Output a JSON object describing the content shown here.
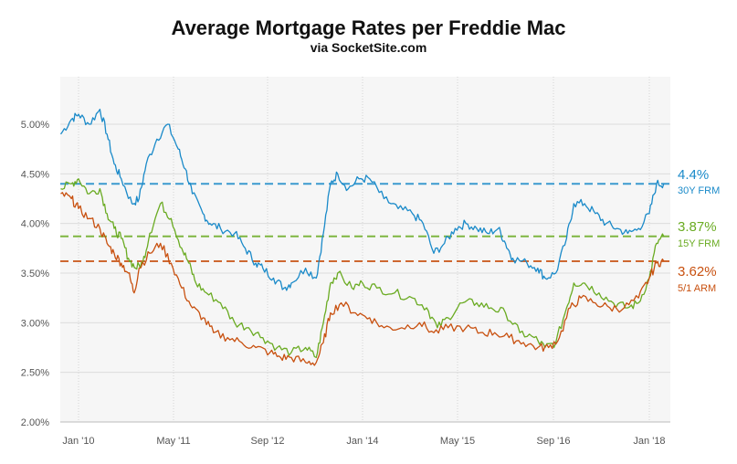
{
  "chart_data": {
    "type": "line",
    "title": "Average Mortgage Rates per Freddie Mac",
    "subtitle": "via SocketSite.com",
    "xlabel": "",
    "ylabel": "",
    "x_ticks": [
      "Jan '10",
      "May '11",
      "Sep '12",
      "Jan '14",
      "May '15",
      "Sep '16",
      "Jan '18"
    ],
    "y_ticks": [
      "2.00%",
      "2.50%",
      "3.00%",
      "3.50%",
      "4.00%",
      "4.50%",
      "5.00%"
    ],
    "ylim": [
      2.0,
      5.5
    ],
    "xlim": [
      2009.75,
      2018.2
    ],
    "grid": true,
    "colors": {
      "30Y FRM": "#1a8ac9",
      "15Y FRM": "#6aab22",
      "5/1 ARM": "#c8500f",
      "shade": "#f6f6f6"
    },
    "series": [
      {
        "name": "30Y FRM",
        "current_label": "4.4%",
        "current": 4.4,
        "points": [
          [
            2009.75,
            4.9
          ],
          [
            2009.9,
            5.05
          ],
          [
            2010.0,
            5.1
          ],
          [
            2010.15,
            5.0
          ],
          [
            2010.3,
            5.15
          ],
          [
            2010.4,
            4.9
          ],
          [
            2010.5,
            4.6
          ],
          [
            2010.6,
            4.45
          ],
          [
            2010.75,
            4.2
          ],
          [
            2010.85,
            4.25
          ],
          [
            2010.95,
            4.6
          ],
          [
            2011.1,
            4.85
          ],
          [
            2011.25,
            5.0
          ],
          [
            2011.4,
            4.75
          ],
          [
            2011.5,
            4.55
          ],
          [
            2011.6,
            4.3
          ],
          [
            2011.75,
            4.1
          ],
          [
            2011.85,
            4.0
          ],
          [
            2012.0,
            3.95
          ],
          [
            2012.2,
            3.9
          ],
          [
            2012.35,
            3.75
          ],
          [
            2012.5,
            3.6
          ],
          [
            2012.6,
            3.55
          ],
          [
            2012.75,
            3.45
          ],
          [
            2012.9,
            3.35
          ],
          [
            2013.0,
            3.4
          ],
          [
            2013.2,
            3.55
          ],
          [
            2013.35,
            3.45
          ],
          [
            2013.45,
            3.9
          ],
          [
            2013.55,
            4.4
          ],
          [
            2013.65,
            4.5
          ],
          [
            2013.8,
            4.35
          ],
          [
            2013.95,
            4.45
          ],
          [
            2014.1,
            4.45
          ],
          [
            2014.3,
            4.25
          ],
          [
            2014.5,
            4.15
          ],
          [
            2014.7,
            4.1
          ],
          [
            2014.85,
            4.0
          ],
          [
            2015.0,
            3.7
          ],
          [
            2015.15,
            3.8
          ],
          [
            2015.3,
            3.95
          ],
          [
            2015.45,
            4.0
          ],
          [
            2015.6,
            3.95
          ],
          [
            2015.75,
            3.9
          ],
          [
            2015.9,
            3.95
          ],
          [
            2016.0,
            3.8
          ],
          [
            2016.1,
            3.65
          ],
          [
            2016.3,
            3.6
          ],
          [
            2016.45,
            3.55
          ],
          [
            2016.55,
            3.45
          ],
          [
            2016.7,
            3.5
          ],
          [
            2016.85,
            3.85
          ],
          [
            2016.95,
            4.2
          ],
          [
            2017.1,
            4.2
          ],
          [
            2017.25,
            4.1
          ],
          [
            2017.4,
            4.0
          ],
          [
            2017.55,
            3.95
          ],
          [
            2017.7,
            3.9
          ],
          [
            2017.85,
            3.95
          ],
          [
            2018.0,
            4.1
          ],
          [
            2018.1,
            4.4
          ],
          [
            2018.2,
            4.4
          ]
        ]
      },
      {
        "name": "15Y FRM",
        "current_label": "3.87%",
        "current": 3.87,
        "points": [
          [
            2009.75,
            4.35
          ],
          [
            2009.9,
            4.4
          ],
          [
            2010.0,
            4.45
          ],
          [
            2010.15,
            4.3
          ],
          [
            2010.3,
            4.35
          ],
          [
            2010.4,
            4.1
          ],
          [
            2010.5,
            3.95
          ],
          [
            2010.6,
            3.85
          ],
          [
            2010.7,
            3.65
          ],
          [
            2010.8,
            3.55
          ],
          [
            2010.9,
            3.6
          ],
          [
            2011.0,
            3.9
          ],
          [
            2011.15,
            4.2
          ],
          [
            2011.3,
            4.05
          ],
          [
            2011.45,
            3.75
          ],
          [
            2011.55,
            3.6
          ],
          [
            2011.65,
            3.4
          ],
          [
            2011.8,
            3.3
          ],
          [
            2012.0,
            3.2
          ],
          [
            2012.2,
            3.0
          ],
          [
            2012.4,
            2.95
          ],
          [
            2012.6,
            2.85
          ],
          [
            2012.8,
            2.75
          ],
          [
            2013.0,
            2.7
          ],
          [
            2013.2,
            2.75
          ],
          [
            2013.35,
            2.65
          ],
          [
            2013.45,
            3.0
          ],
          [
            2013.55,
            3.4
          ],
          [
            2013.65,
            3.5
          ],
          [
            2013.85,
            3.35
          ],
          [
            2014.0,
            3.4
          ],
          [
            2014.2,
            3.35
          ],
          [
            2014.45,
            3.3
          ],
          [
            2014.7,
            3.25
          ],
          [
            2014.9,
            3.15
          ],
          [
            2015.05,
            2.95
          ],
          [
            2015.2,
            3.05
          ],
          [
            2015.4,
            3.2
          ],
          [
            2015.6,
            3.2
          ],
          [
            2015.8,
            3.15
          ],
          [
            2016.0,
            3.1
          ],
          [
            2016.2,
            2.9
          ],
          [
            2016.4,
            2.85
          ],
          [
            2016.55,
            2.75
          ],
          [
            2016.7,
            2.8
          ],
          [
            2016.85,
            3.15
          ],
          [
            2016.95,
            3.4
          ],
          [
            2017.1,
            3.4
          ],
          [
            2017.3,
            3.3
          ],
          [
            2017.5,
            3.2
          ],
          [
            2017.7,
            3.15
          ],
          [
            2017.85,
            3.2
          ],
          [
            2018.0,
            3.45
          ],
          [
            2018.1,
            3.8
          ],
          [
            2018.2,
            3.87
          ]
        ]
      },
      {
        "name": "5/1 ARM",
        "current_label": "3.62%",
        "current": 3.62,
        "points": [
          [
            2009.75,
            4.3
          ],
          [
            2009.9,
            4.25
          ],
          [
            2010.0,
            4.15
          ],
          [
            2010.15,
            4.05
          ],
          [
            2010.3,
            3.95
          ],
          [
            2010.4,
            3.8
          ],
          [
            2010.5,
            3.7
          ],
          [
            2010.6,
            3.6
          ],
          [
            2010.7,
            3.5
          ],
          [
            2010.78,
            3.3
          ],
          [
            2010.85,
            3.55
          ],
          [
            2011.0,
            3.7
          ],
          [
            2011.15,
            3.8
          ],
          [
            2011.3,
            3.6
          ],
          [
            2011.45,
            3.35
          ],
          [
            2011.6,
            3.15
          ],
          [
            2011.75,
            3.05
          ],
          [
            2011.9,
            2.9
          ],
          [
            2012.1,
            2.85
          ],
          [
            2012.3,
            2.8
          ],
          [
            2012.5,
            2.75
          ],
          [
            2012.7,
            2.7
          ],
          [
            2012.85,
            2.65
          ],
          [
            2013.0,
            2.65
          ],
          [
            2013.2,
            2.6
          ],
          [
            2013.35,
            2.6
          ],
          [
            2013.45,
            2.8
          ],
          [
            2013.55,
            3.1
          ],
          [
            2013.7,
            3.2
          ],
          [
            2013.9,
            3.1
          ],
          [
            2014.1,
            3.05
          ],
          [
            2014.3,
            2.95
          ],
          [
            2014.55,
            2.95
          ],
          [
            2014.8,
            3.0
          ],
          [
            2015.0,
            2.9
          ],
          [
            2015.2,
            2.95
          ],
          [
            2015.45,
            2.95
          ],
          [
            2015.65,
            2.9
          ],
          [
            2015.85,
            2.9
          ],
          [
            2016.05,
            2.85
          ],
          [
            2016.25,
            2.8
          ],
          [
            2016.45,
            2.75
          ],
          [
            2016.6,
            2.75
          ],
          [
            2016.75,
            2.85
          ],
          [
            2016.9,
            3.15
          ],
          [
            2017.05,
            3.25
          ],
          [
            2017.25,
            3.2
          ],
          [
            2017.45,
            3.15
          ],
          [
            2017.65,
            3.15
          ],
          [
            2017.85,
            3.25
          ],
          [
            2018.0,
            3.45
          ],
          [
            2018.1,
            3.6
          ],
          [
            2018.2,
            3.62
          ]
        ]
      }
    ]
  }
}
